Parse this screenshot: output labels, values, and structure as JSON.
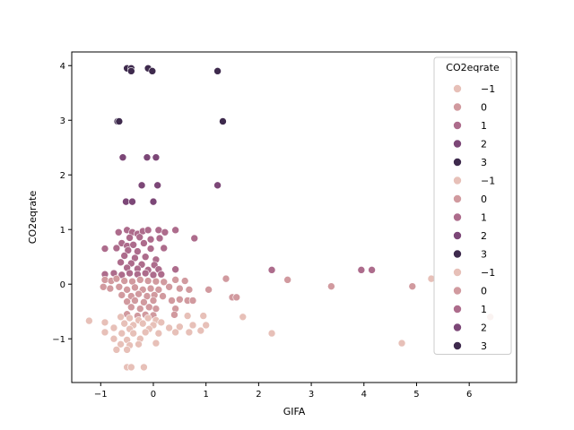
{
  "chart_data": {
    "type": "scatter",
    "title": "",
    "xlabel": "GIFA",
    "ylabel": "CO2eqrate",
    "xlim": [
      -1.55,
      6.9
    ],
    "ylim": [
      -1.8,
      4.25
    ],
    "xticks": [
      -1,
      0,
      1,
      2,
      3,
      4,
      5,
      6
    ],
    "yticks": [
      -1,
      0,
      1,
      2,
      3,
      4
    ],
    "grid": false,
    "hue_colors": {
      "-1": "#e7c0b8",
      "0": "#d19a9f",
      "1": "#ad6c8c",
      "2": "#7c4777",
      "3": "#3e2a4d"
    },
    "legend": {
      "title": "CO2eqrate",
      "placement": "top-right",
      "entries": [
        {
          "label": "−1",
          "hue": "-1"
        },
        {
          "label": "0",
          "hue": "0"
        },
        {
          "label": "1",
          "hue": "1"
        },
        {
          "label": "2",
          "hue": "2"
        },
        {
          "label": "3",
          "hue": "3"
        },
        {
          "label": "−1",
          "hue": "-1"
        },
        {
          "label": "0",
          "hue": "0"
        },
        {
          "label": "1",
          "hue": "1"
        },
        {
          "label": "2",
          "hue": "2"
        },
        {
          "label": "3",
          "hue": "3"
        },
        {
          "label": "−1",
          "hue": "-1"
        },
        {
          "label": "0",
          "hue": "0"
        },
        {
          "label": "1",
          "hue": "1"
        },
        {
          "label": "2",
          "hue": "2"
        },
        {
          "label": "3",
          "hue": "3"
        }
      ]
    },
    "points": [
      {
        "x": -0.5,
        "y": 3.95,
        "hue": "3"
      },
      {
        "x": -0.42,
        "y": 3.95,
        "hue": "3"
      },
      {
        "x": -0.42,
        "y": 3.9,
        "hue": "3"
      },
      {
        "x": -0.1,
        "y": 3.95,
        "hue": "3"
      },
      {
        "x": -0.02,
        "y": 3.9,
        "hue": "3"
      },
      {
        "x": 1.22,
        "y": 3.9,
        "hue": "3"
      },
      {
        "x": -0.68,
        "y": 2.98,
        "hue": "3"
      },
      {
        "x": -0.65,
        "y": 2.98,
        "hue": "3"
      },
      {
        "x": 1.32,
        "y": 2.98,
        "hue": "3"
      },
      {
        "x": -0.58,
        "y": 2.32,
        "hue": "2"
      },
      {
        "x": -0.12,
        "y": 2.32,
        "hue": "2"
      },
      {
        "x": 0.05,
        "y": 2.32,
        "hue": "2"
      },
      {
        "x": -0.22,
        "y": 1.81,
        "hue": "2"
      },
      {
        "x": 0.08,
        "y": 1.81,
        "hue": "2"
      },
      {
        "x": 1.22,
        "y": 1.81,
        "hue": "2"
      },
      {
        "x": -0.52,
        "y": 1.51,
        "hue": "2"
      },
      {
        "x": -0.4,
        "y": 1.51,
        "hue": "2"
      },
      {
        "x": 0.0,
        "y": 1.51,
        "hue": "2"
      },
      {
        "x": -0.5,
        "y": 0.99,
        "hue": "1"
      },
      {
        "x": -0.4,
        "y": 0.95,
        "hue": "1"
      },
      {
        "x": -0.3,
        "y": 0.92,
        "hue": "1"
      },
      {
        "x": -0.2,
        "y": 0.97,
        "hue": "1"
      },
      {
        "x": -0.1,
        "y": 0.99,
        "hue": "1"
      },
      {
        "x": 0.1,
        "y": 0.99,
        "hue": "1"
      },
      {
        "x": 0.22,
        "y": 0.95,
        "hue": "1"
      },
      {
        "x": 0.42,
        "y": 0.99,
        "hue": "1"
      },
      {
        "x": -0.66,
        "y": 0.95,
        "hue": "1"
      },
      {
        "x": -0.45,
        "y": 0.85,
        "hue": "1"
      },
      {
        "x": -0.26,
        "y": 0.86,
        "hue": "1"
      },
      {
        "x": -0.05,
        "y": 0.82,
        "hue": "1"
      },
      {
        "x": 0.12,
        "y": 0.84,
        "hue": "1"
      },
      {
        "x": 0.78,
        "y": 0.84,
        "hue": "1"
      },
      {
        "x": -0.6,
        "y": 0.75,
        "hue": "1"
      },
      {
        "x": -0.5,
        "y": 0.7,
        "hue": "1"
      },
      {
        "x": -0.38,
        "y": 0.72,
        "hue": "1"
      },
      {
        "x": -0.18,
        "y": 0.75,
        "hue": "1"
      },
      {
        "x": -0.92,
        "y": 0.65,
        "hue": "1"
      },
      {
        "x": -0.7,
        "y": 0.66,
        "hue": "1"
      },
      {
        "x": -0.48,
        "y": 0.62,
        "hue": "1"
      },
      {
        "x": -0.3,
        "y": 0.6,
        "hue": "1"
      },
      {
        "x": -0.05,
        "y": 0.65,
        "hue": "1"
      },
      {
        "x": 0.2,
        "y": 0.66,
        "hue": "1"
      },
      {
        "x": -0.55,
        "y": 0.52,
        "hue": "1"
      },
      {
        "x": -0.35,
        "y": 0.48,
        "hue": "1"
      },
      {
        "x": -0.15,
        "y": 0.5,
        "hue": "1"
      },
      {
        "x": 0.05,
        "y": 0.45,
        "hue": "1"
      },
      {
        "x": -0.62,
        "y": 0.4,
        "hue": "1"
      },
      {
        "x": -0.42,
        "y": 0.38,
        "hue": "1"
      },
      {
        "x": -0.22,
        "y": 0.36,
        "hue": "1"
      },
      {
        "x": 0.02,
        "y": 0.35,
        "hue": "1"
      },
      {
        "x": -0.5,
        "y": 0.3,
        "hue": "1"
      },
      {
        "x": -0.3,
        "y": 0.28,
        "hue": "1"
      },
      {
        "x": -0.1,
        "y": 0.26,
        "hue": "1"
      },
      {
        "x": 0.1,
        "y": 0.27,
        "hue": "1"
      },
      {
        "x": 0.42,
        "y": 0.27,
        "hue": "1"
      },
      {
        "x": 2.25,
        "y": 0.26,
        "hue": "1"
      },
      {
        "x": 3.95,
        "y": 0.26,
        "hue": "1"
      },
      {
        "x": 4.15,
        "y": 0.26,
        "hue": "1"
      },
      {
        "x": -0.92,
        "y": 0.18,
        "hue": "1"
      },
      {
        "x": -0.75,
        "y": 0.2,
        "hue": "1"
      },
      {
        "x": -0.6,
        "y": 0.17,
        "hue": "1"
      },
      {
        "x": -0.45,
        "y": 0.2,
        "hue": "1"
      },
      {
        "x": -0.3,
        "y": 0.18,
        "hue": "1"
      },
      {
        "x": -0.15,
        "y": 0.2,
        "hue": "1"
      },
      {
        "x": 0.0,
        "y": 0.17,
        "hue": "1"
      },
      {
        "x": 0.15,
        "y": 0.18,
        "hue": "1"
      },
      {
        "x": -0.92,
        "y": 0.08,
        "hue": "0"
      },
      {
        "x": -0.8,
        "y": 0.06,
        "hue": "0"
      },
      {
        "x": -0.7,
        "y": 0.1,
        "hue": "0"
      },
      {
        "x": -0.55,
        "y": 0.06,
        "hue": "0"
      },
      {
        "x": -0.4,
        "y": 0.05,
        "hue": "0"
      },
      {
        "x": -0.25,
        "y": 0.08,
        "hue": "0"
      },
      {
        "x": -0.1,
        "y": 0.06,
        "hue": "0"
      },
      {
        "x": 0.05,
        "y": 0.05,
        "hue": "0"
      },
      {
        "x": 0.2,
        "y": 0.04,
        "hue": "0"
      },
      {
        "x": 0.42,
        "y": 0.08,
        "hue": "0"
      },
      {
        "x": 0.6,
        "y": 0.06,
        "hue": "0"
      },
      {
        "x": 1.38,
        "y": 0.1,
        "hue": "0"
      },
      {
        "x": 2.55,
        "y": 0.08,
        "hue": "0"
      },
      {
        "x": -0.95,
        "y": -0.05,
        "hue": "0"
      },
      {
        "x": -0.82,
        "y": -0.08,
        "hue": "0"
      },
      {
        "x": -0.65,
        "y": -0.05,
        "hue": "0"
      },
      {
        "x": -0.5,
        "y": -0.1,
        "hue": "0"
      },
      {
        "x": -0.35,
        "y": -0.06,
        "hue": "0"
      },
      {
        "x": -0.2,
        "y": -0.1,
        "hue": "0"
      },
      {
        "x": -0.05,
        "y": -0.08,
        "hue": "0"
      },
      {
        "x": 0.1,
        "y": -0.1,
        "hue": "0"
      },
      {
        "x": 0.3,
        "y": -0.05,
        "hue": "0"
      },
      {
        "x": 0.5,
        "y": -0.08,
        "hue": "0"
      },
      {
        "x": 0.68,
        "y": -0.1,
        "hue": "0"
      },
      {
        "x": 1.05,
        "y": -0.1,
        "hue": "0"
      },
      {
        "x": 3.38,
        "y": -0.04,
        "hue": "0"
      },
      {
        "x": 4.92,
        "y": -0.04,
        "hue": "0"
      },
      {
        "x": -0.6,
        "y": -0.2,
        "hue": "0"
      },
      {
        "x": -0.42,
        "y": -0.22,
        "hue": "0"
      },
      {
        "x": -0.28,
        "y": -0.18,
        "hue": "0"
      },
      {
        "x": -0.12,
        "y": -0.22,
        "hue": "0"
      },
      {
        "x": 0.02,
        "y": -0.2,
        "hue": "0"
      },
      {
        "x": 0.18,
        "y": -0.22,
        "hue": "0"
      },
      {
        "x": 1.5,
        "y": -0.24,
        "hue": "0"
      },
      {
        "x": 1.58,
        "y": -0.24,
        "hue": "0"
      },
      {
        "x": -0.5,
        "y": -0.32,
        "hue": "0"
      },
      {
        "x": -0.35,
        "y": -0.3,
        "hue": "0"
      },
      {
        "x": -0.18,
        "y": -0.33,
        "hue": "0"
      },
      {
        "x": 0.0,
        "y": -0.3,
        "hue": "0"
      },
      {
        "x": 0.35,
        "y": -0.3,
        "hue": "0"
      },
      {
        "x": 0.5,
        "y": -0.28,
        "hue": "0"
      },
      {
        "x": 0.65,
        "y": -0.3,
        "hue": "0"
      },
      {
        "x": 0.75,
        "y": -0.3,
        "hue": "0"
      },
      {
        "x": -0.42,
        "y": -0.42,
        "hue": "0"
      },
      {
        "x": -0.25,
        "y": -0.45,
        "hue": "0"
      },
      {
        "x": -0.08,
        "y": -0.42,
        "hue": "0"
      },
      {
        "x": 0.05,
        "y": -0.45,
        "hue": "0"
      },
      {
        "x": 0.42,
        "y": -0.45,
        "hue": "0"
      },
      {
        "x": -0.5,
        "y": -0.55,
        "hue": "0"
      },
      {
        "x": -0.3,
        "y": -0.58,
        "hue": "0"
      },
      {
        "x": -0.15,
        "y": -0.56,
        "hue": "0"
      },
      {
        "x": 0.0,
        "y": -0.57,
        "hue": "0"
      },
      {
        "x": 0.4,
        "y": -0.56,
        "hue": "0"
      },
      {
        "x": -0.62,
        "y": -0.6,
        "hue": "-1"
      },
      {
        "x": -0.45,
        "y": -0.62,
        "hue": "-1"
      },
      {
        "x": -0.28,
        "y": -0.66,
        "hue": "-1"
      },
      {
        "x": -0.1,
        "y": -0.62,
        "hue": "-1"
      },
      {
        "x": 0.05,
        "y": -0.66,
        "hue": "-1"
      },
      {
        "x": 0.15,
        "y": -0.7,
        "hue": "-1"
      },
      {
        "x": 0.65,
        "y": -0.58,
        "hue": "-1"
      },
      {
        "x": 0.95,
        "y": -0.58,
        "hue": "-1"
      },
      {
        "x": 1.7,
        "y": -0.6,
        "hue": "-1"
      },
      {
        "x": -1.22,
        "y": -0.67,
        "hue": "-1"
      },
      {
        "x": -0.92,
        "y": -0.7,
        "hue": "-1"
      },
      {
        "x": -0.55,
        "y": -0.72,
        "hue": "-1"
      },
      {
        "x": -0.38,
        "y": -0.75,
        "hue": "-1"
      },
      {
        "x": -0.2,
        "y": -0.72,
        "hue": "-1"
      },
      {
        "x": 0.0,
        "y": -0.75,
        "hue": "-1"
      },
      {
        "x": 0.75,
        "y": -0.75,
        "hue": "-1"
      },
      {
        "x": 1.0,
        "y": -0.75,
        "hue": "-1"
      },
      {
        "x": -0.75,
        "y": -0.8,
        "hue": "-1"
      },
      {
        "x": -0.45,
        "y": -0.82,
        "hue": "-1"
      },
      {
        "x": -0.08,
        "y": -0.82,
        "hue": "-1"
      },
      {
        "x": 0.3,
        "y": -0.8,
        "hue": "-1"
      },
      {
        "x": 0.5,
        "y": -0.78,
        "hue": "-1"
      },
      {
        "x": -0.92,
        "y": -0.88,
        "hue": "-1"
      },
      {
        "x": -0.6,
        "y": -0.9,
        "hue": "-1"
      },
      {
        "x": -0.38,
        "y": -0.9,
        "hue": "-1"
      },
      {
        "x": -0.15,
        "y": -0.88,
        "hue": "-1"
      },
      {
        "x": 0.1,
        "y": -0.9,
        "hue": "-1"
      },
      {
        "x": 0.42,
        "y": -0.88,
        "hue": "-1"
      },
      {
        "x": 0.68,
        "y": -0.88,
        "hue": "-1"
      },
      {
        "x": 0.9,
        "y": -0.85,
        "hue": "-1"
      },
      {
        "x": 2.25,
        "y": -0.9,
        "hue": "-1"
      },
      {
        "x": -0.75,
        "y": -1.0,
        "hue": "-1"
      },
      {
        "x": -0.5,
        "y": -1.02,
        "hue": "-1"
      },
      {
        "x": -0.25,
        "y": -1.0,
        "hue": "-1"
      },
      {
        "x": -0.62,
        "y": -1.1,
        "hue": "-1"
      },
      {
        "x": -0.45,
        "y": -1.12,
        "hue": "-1"
      },
      {
        "x": -0.28,
        "y": -1.1,
        "hue": "-1"
      },
      {
        "x": 0.05,
        "y": -1.08,
        "hue": "-1"
      },
      {
        "x": 4.72,
        "y": -1.08,
        "hue": "-1"
      },
      {
        "x": -0.7,
        "y": -1.2,
        "hue": "-1"
      },
      {
        "x": -0.5,
        "y": -1.2,
        "hue": "-1"
      },
      {
        "x": -0.5,
        "y": -1.52,
        "hue": "-1"
      },
      {
        "x": -0.42,
        "y": -1.52,
        "hue": "-1"
      },
      {
        "x": -0.18,
        "y": -1.52,
        "hue": "-1"
      },
      {
        "x": 5.28,
        "y": 0.1,
        "hue": "-1"
      },
      {
        "x": 6.4,
        "y": -0.6,
        "hue": "-1"
      }
    ]
  }
}
